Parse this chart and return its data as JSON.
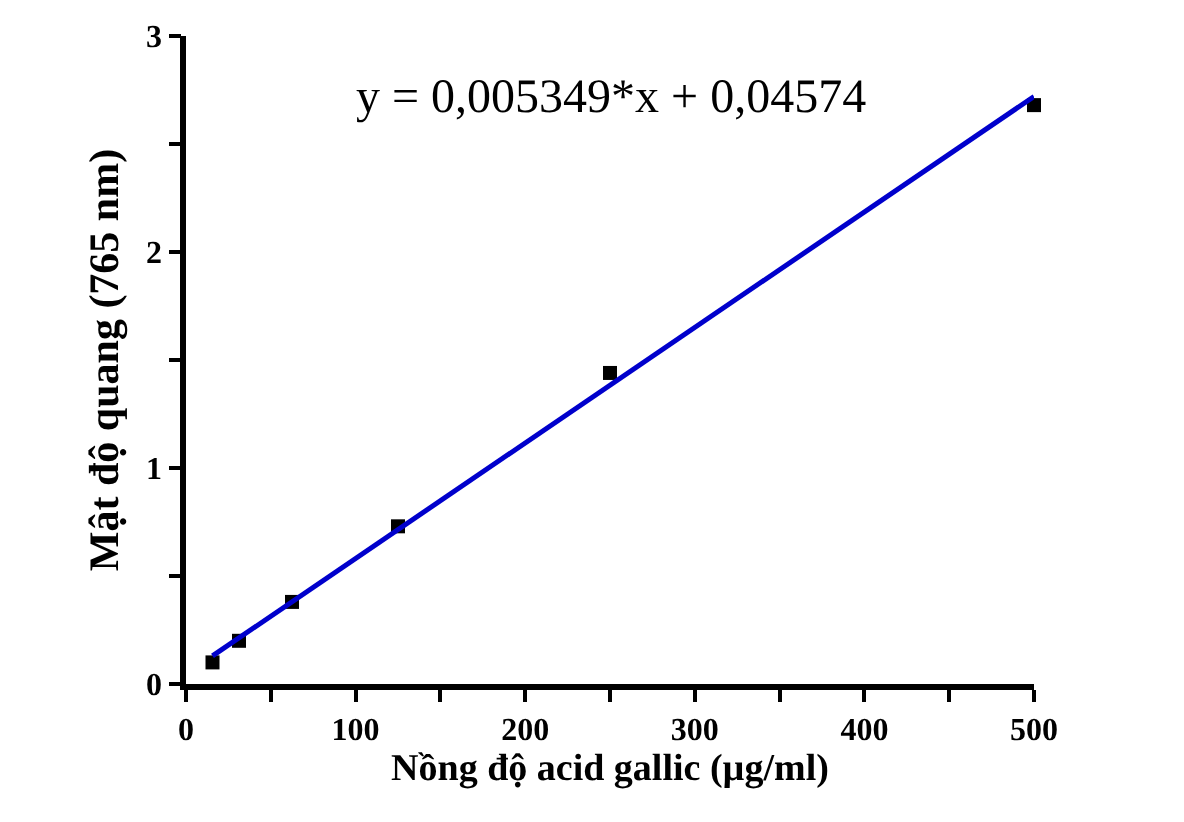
{
  "chart_data": {
    "type": "scatter",
    "xlabel": "Nồng độ acid gallic (µg/ml)",
    "ylabel": "Mật độ quang (765 nm)",
    "annotations": [
      "y = 0,005349*x + 0,04574"
    ],
    "xlim": [
      0,
      500
    ],
    "ylim": [
      0,
      3
    ],
    "xticks": [
      0,
      {
        "value": 50,
        "label": null
      },
      100,
      {
        "value": 150,
        "label": null
      },
      200,
      {
        "value": 250,
        "label": null
      },
      300,
      {
        "value": 350,
        "label": null
      },
      400,
      {
        "value": 450,
        "label": null
      },
      500
    ],
    "yticks": [
      0,
      {
        "value": 0.5,
        "label": null
      },
      1,
      {
        "value": 1.5,
        "label": null
      },
      2,
      {
        "value": 2.5,
        "label": null
      },
      3
    ],
    "series": [
      {
        "color": "#000000",
        "marker": "square",
        "x": [
          15.625,
          31.25,
          62.5,
          125,
          250,
          500
        ],
        "values": [
          0.1,
          0.2,
          0.38,
          0.73,
          1.44,
          2.68
        ]
      },
      {
        "type": "line",
        "color": "#0000cc",
        "line_style": "solid",
        "marker": "none",
        "x": [
          15.625,
          500
        ],
        "values": [
          0.13,
          2.72
        ]
      }
    ]
  }
}
